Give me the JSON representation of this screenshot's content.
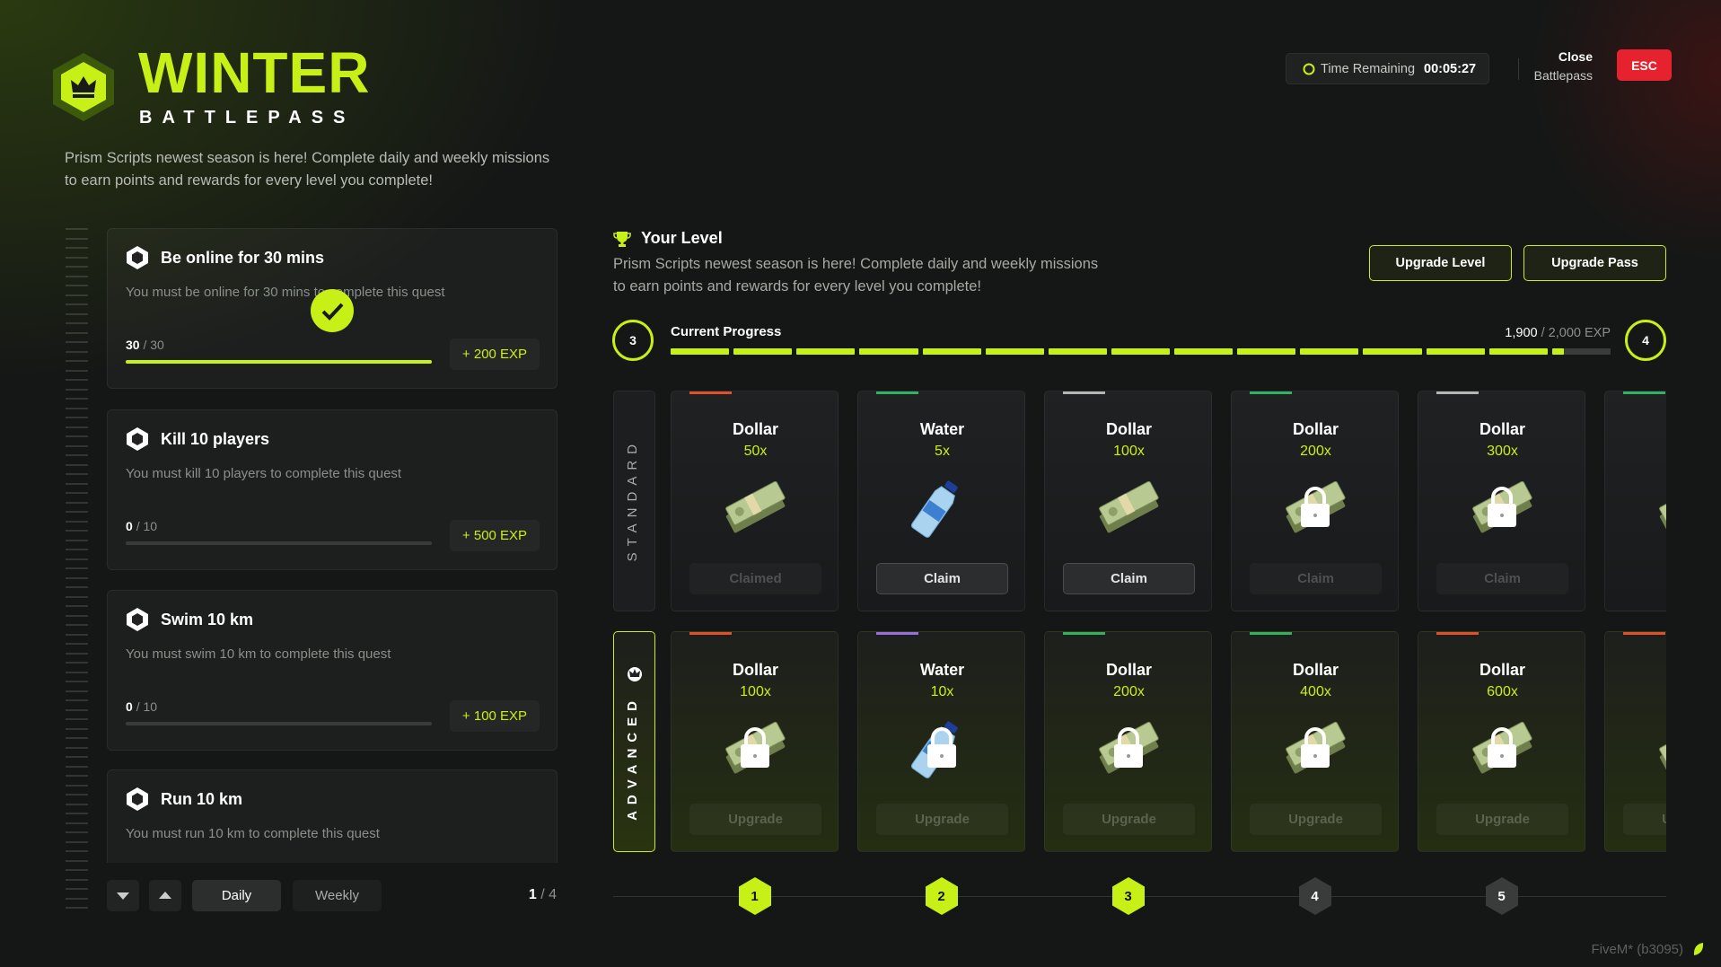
{
  "header": {
    "title": "WINTER",
    "subtitle": "BATTLEPASS",
    "description": [
      "Prism Scripts newest season is here! Complete daily and weekly missions",
      "to earn points and rewards for every level you complete!"
    ]
  },
  "timer": {
    "label": "Time Remaining",
    "value": "00:05:27"
  },
  "close": {
    "label": "Close",
    "sublabel": "Battlepass",
    "key": "ESC"
  },
  "quests": [
    {
      "title": "Be online for 30 mins",
      "description": "You must be online for 30 mins to complete this quest",
      "progress": {
        "value": 30,
        "label": "30"
      },
      "total": {
        "value": 30,
        "label": "/ 30"
      },
      "reward": "+ 200 EXP",
      "completed": true
    },
    {
      "title": "Kill 10 players",
      "description": "You must kill 10 players to complete this quest",
      "progress": {
        "value": 0,
        "label": "0"
      },
      "total": {
        "value": 10,
        "label": "/ 10"
      },
      "reward": "+ 500 EXP",
      "completed": false
    },
    {
      "title": "Swim 10 km",
      "description": "You must swim 10 km to complete this quest",
      "progress": {
        "value": 0,
        "label": "0"
      },
      "total": {
        "value": 10,
        "label": "/ 10"
      },
      "reward": "+ 100 EXP",
      "completed": false
    },
    {
      "title": "Run 10 km",
      "description": "You must run 10 km to complete this quest"
    }
  ],
  "quest_nav": {
    "tabs": [
      "Daily",
      "Weekly"
    ],
    "active_tab": 0,
    "page": "1",
    "page_total": "/ 4"
  },
  "level": {
    "title": "Your Level",
    "description": [
      "Prism Scripts newest season is here! Complete daily and weekly missions",
      "to earn points and rewards for every level you complete!"
    ],
    "buttons": [
      "Upgrade Level",
      "Upgrade Pass"
    ],
    "current": "3",
    "next": "4",
    "progress_label": "Current Progress",
    "exp": {
      "value": 1900,
      "label": "1,900"
    },
    "exp_max": {
      "value": 2000,
      "label": "/ 2,000 EXP"
    },
    "segments": 15
  },
  "tracks": [
    {
      "name": "STANDARD",
      "rewards": [
        {
          "name": "Dollar",
          "amount": "50x",
          "icon": "dollar",
          "color": "#e0502a",
          "button": "Claimed",
          "locked": false,
          "enabled": false
        },
        {
          "name": "Water",
          "amount": "5x",
          "icon": "water",
          "color": "#2fb360",
          "button": "Claim",
          "locked": false,
          "enabled": true
        },
        {
          "name": "Dollar",
          "amount": "100x",
          "icon": "dollar",
          "color": "#b5b5b5",
          "button": "Claim",
          "locked": false,
          "enabled": true
        },
        {
          "name": "Dollar",
          "amount": "200x",
          "icon": "dollar",
          "color": "#2fb360",
          "button": "Claim",
          "locked": true,
          "enabled": false
        },
        {
          "name": "Dollar",
          "amount": "300x",
          "icon": "dollar",
          "color": "#b5b5b5",
          "button": "Claim",
          "locked": true,
          "enabled": false
        },
        {
          "icon": "dollar",
          "color": "#2fb360",
          "locked": false,
          "enabled": false
        }
      ]
    },
    {
      "name": "ADVANCED",
      "rewards": [
        {
          "name": "Dollar",
          "amount": "100x",
          "icon": "dollar",
          "color": "#e0502a",
          "button": "Upgrade",
          "locked": true,
          "enabled": false
        },
        {
          "name": "Water",
          "amount": "10x",
          "icon": "water",
          "color": "#9b6ee0",
          "button": "Upgrade",
          "locked": true,
          "enabled": false
        },
        {
          "name": "Dollar",
          "amount": "200x",
          "icon": "dollar",
          "color": "#2fb360",
          "button": "Upgrade",
          "locked": true,
          "enabled": false
        },
        {
          "name": "Dollar",
          "amount": "400x",
          "icon": "dollar",
          "color": "#2fb360",
          "button": "Upgrade",
          "locked": true,
          "enabled": false
        },
        {
          "name": "Dollar",
          "amount": "600x",
          "icon": "dollar",
          "color": "#e0502a",
          "button": "Upgrade",
          "locked": true,
          "enabled": false
        },
        {
          "icon": "dollar",
          "color": "#e0502a",
          "button": "Upgrade",
          "locked": false,
          "enabled": false
        }
      ]
    }
  ],
  "levels": [
    {
      "number": "1",
      "reached": true
    },
    {
      "number": "2",
      "reached": true
    },
    {
      "number": "3",
      "reached": true
    },
    {
      "number": "4",
      "reached": false
    },
    {
      "number": "5",
      "reached": false
    }
  ],
  "footer": "FiveM* (b3095)"
}
